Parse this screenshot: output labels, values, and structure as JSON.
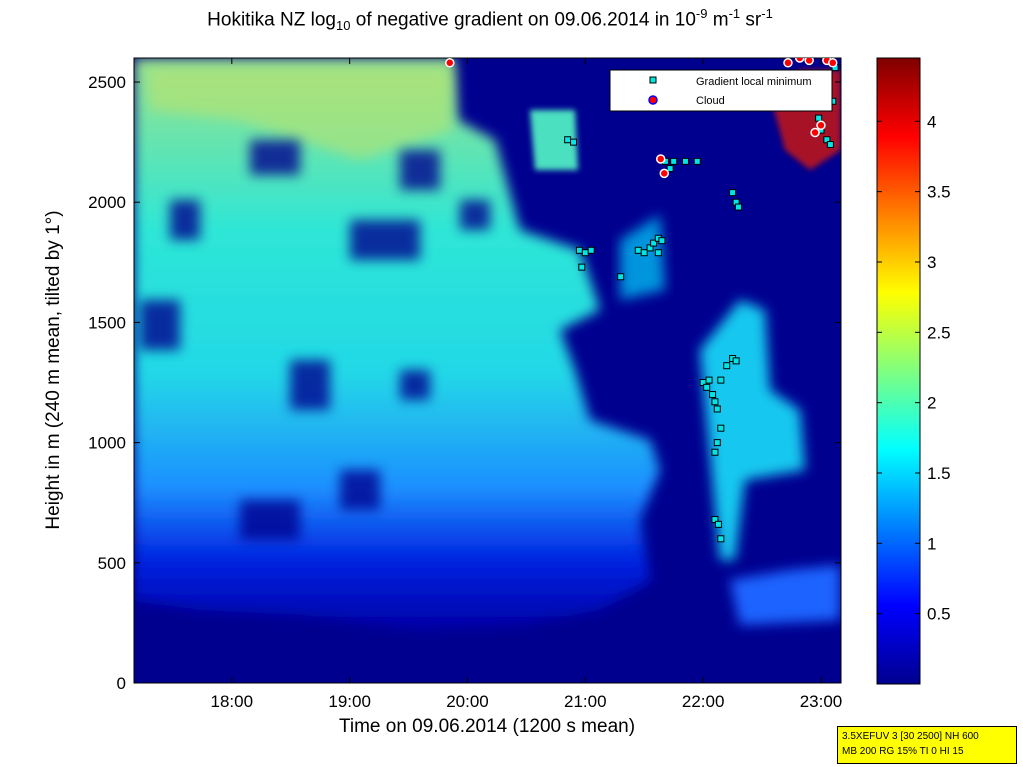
{
  "chart_data": {
    "type": "heatmap",
    "title": {
      "prefix": "Hokitika NZ log",
      "sub": "10",
      "middle": " of negative gradient on 09.06.2014 in 10",
      "sup1": "-9",
      "unit1": " m",
      "sup2": "-1",
      "unit2": " sr",
      "sup3": "-1"
    },
    "xlabel": "Time on 09.06.2014 (1200 s mean)",
    "ylabel": "Height in m (240 m mean, tilted by 1°)",
    "x_unit": "hours",
    "xlim": [
      17.17,
      23.17
    ],
    "ylim": [
      0,
      2600
    ],
    "x_ticks": [
      {
        "value": 18,
        "label": "18:00"
      },
      {
        "value": 19,
        "label": "19:00"
      },
      {
        "value": 20,
        "label": "20:00"
      },
      {
        "value": 21,
        "label": "21:00"
      },
      {
        "value": 22,
        "label": "22:00"
      },
      {
        "value": 23,
        "label": "23:00"
      }
    ],
    "y_ticks": [
      {
        "value": 0,
        "label": "0"
      },
      {
        "value": 500,
        "label": "500"
      },
      {
        "value": 1000,
        "label": "1000"
      },
      {
        "value": 1500,
        "label": "1500"
      },
      {
        "value": 2000,
        "label": "2000"
      },
      {
        "value": 2500,
        "label": "2500"
      }
    ],
    "colorbar": {
      "min": 0,
      "max": 4.45,
      "ticks": [
        {
          "value": 0.5,
          "label": "0.5"
        },
        {
          "value": 1,
          "label": "1"
        },
        {
          "value": 1.5,
          "label": "1.5"
        },
        {
          "value": 2,
          "label": "2"
        },
        {
          "value": 2.5,
          "label": "2.5"
        },
        {
          "value": 3,
          "label": "3"
        },
        {
          "value": 3.5,
          "label": "3.5"
        },
        {
          "value": 4,
          "label": "4"
        }
      ]
    },
    "legend_position": "top-right",
    "series": [
      {
        "name": "Gradient local minimum",
        "marker": "square",
        "color": "#00e5e5",
        "points": [
          [
            20.85,
            2260
          ],
          [
            20.9,
            2250
          ],
          [
            20.95,
            1800
          ],
          [
            21.0,
            1790
          ],
          [
            21.05,
            1800
          ],
          [
            20.97,
            1730
          ],
          [
            21.3,
            1690
          ],
          [
            21.45,
            1800
          ],
          [
            21.5,
            1790
          ],
          [
            21.55,
            1810
          ],
          [
            21.58,
            1830
          ],
          [
            21.62,
            1850
          ],
          [
            21.65,
            1840
          ],
          [
            21.62,
            1790
          ],
          [
            21.68,
            2170
          ],
          [
            21.72,
            2140
          ],
          [
            21.75,
            2170
          ],
          [
            21.85,
            2170
          ],
          [
            21.95,
            2170
          ],
          [
            22.25,
            2040
          ],
          [
            22.28,
            2000
          ],
          [
            22.3,
            1980
          ],
          [
            22.0,
            1250
          ],
          [
            22.03,
            1230
          ],
          [
            22.05,
            1260
          ],
          [
            22.08,
            1200
          ],
          [
            22.1,
            1170
          ],
          [
            22.12,
            1140
          ],
          [
            22.15,
            1060
          ],
          [
            22.12,
            1000
          ],
          [
            22.1,
            960
          ],
          [
            22.15,
            1260
          ],
          [
            22.2,
            1320
          ],
          [
            22.25,
            1350
          ],
          [
            22.28,
            1340
          ],
          [
            22.1,
            680
          ],
          [
            22.13,
            660
          ],
          [
            22.15,
            600
          ],
          [
            22.95,
            2500
          ],
          [
            22.98,
            2350
          ],
          [
            23.0,
            2300
          ],
          [
            23.05,
            2260
          ],
          [
            23.08,
            2240
          ],
          [
            23.1,
            2420
          ],
          [
            23.12,
            2560
          ]
        ]
      },
      {
        "name": "Cloud",
        "marker": "circle",
        "color": "#ff0000",
        "points": [
          [
            19.85,
            2580
          ],
          [
            21.64,
            2180
          ],
          [
            21.67,
            2120
          ],
          [
            22.72,
            2580
          ],
          [
            22.82,
            2600
          ],
          [
            22.9,
            2590
          ],
          [
            22.95,
            2290
          ],
          [
            23.0,
            2320
          ],
          [
            23.05,
            2590
          ],
          [
            23.1,
            2580
          ]
        ]
      }
    ]
  },
  "info_box": {
    "line1": "3.5XEFUV 3 [30 2500] NH 600",
    "line2": "MB 200 RG 15% TI 0 HI 15"
  }
}
